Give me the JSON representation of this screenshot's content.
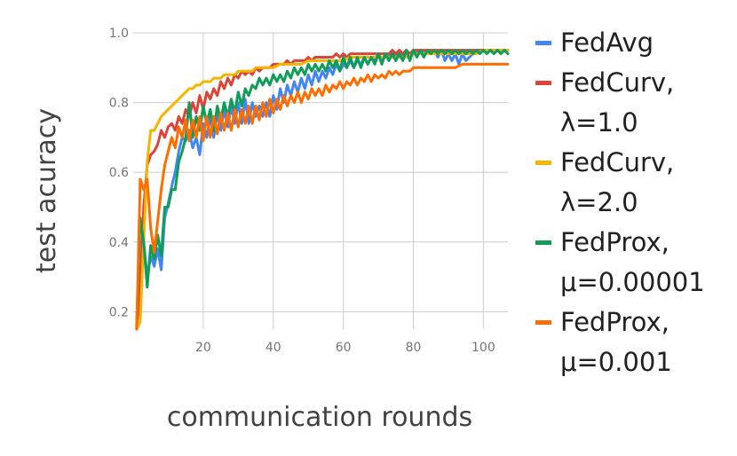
{
  "chart_data": {
    "type": "line",
    "title": "",
    "xlabel": "communication rounds",
    "ylabel": "test acuracy",
    "xlim": [
      0,
      107
    ],
    "ylim": [
      0.15,
      1.0
    ],
    "xticks": [
      20,
      40,
      60,
      80,
      100
    ],
    "yticks": [
      0.2,
      0.4,
      0.6,
      0.8,
      1.0
    ],
    "grid": true,
    "legend_position": "right",
    "series": [
      {
        "name_lines": [
          "FedAvg"
        ],
        "color": "#4285F4",
        "x": [
          1,
          2,
          3,
          4,
          5,
          6,
          7,
          8,
          9,
          10,
          11,
          12,
          13,
          14,
          15,
          16,
          17,
          18,
          19,
          20,
          21,
          22,
          23,
          24,
          25,
          26,
          27,
          28,
          29,
          30,
          31,
          32,
          33,
          34,
          35,
          36,
          37,
          38,
          39,
          40,
          41,
          42,
          43,
          44,
          45,
          46,
          47,
          48,
          49,
          50,
          51,
          52,
          53,
          54,
          55,
          56,
          57,
          58,
          59,
          60,
          61,
          62,
          63,
          64,
          65,
          66,
          67,
          68,
          69,
          70,
          71,
          72,
          73,
          74,
          75,
          76,
          77,
          78,
          79,
          80,
          81,
          82,
          83,
          84,
          85,
          86,
          87,
          88,
          89,
          90,
          91,
          92,
          93,
          94,
          95,
          96,
          97,
          98,
          99,
          100,
          101,
          102,
          103,
          104,
          105,
          106,
          107
        ],
        "y": [
          0.16,
          0.25,
          0.4,
          0.3,
          0.36,
          0.33,
          0.38,
          0.32,
          0.47,
          0.51,
          0.56,
          0.6,
          0.66,
          0.7,
          0.69,
          0.72,
          0.67,
          0.7,
          0.65,
          0.74,
          0.7,
          0.76,
          0.7,
          0.77,
          0.72,
          0.78,
          0.73,
          0.79,
          0.74,
          0.8,
          0.74,
          0.81,
          0.74,
          0.8,
          0.76,
          0.79,
          0.76,
          0.8,
          0.76,
          0.82,
          0.78,
          0.84,
          0.8,
          0.85,
          0.82,
          0.86,
          0.83,
          0.87,
          0.84,
          0.88,
          0.85,
          0.89,
          0.86,
          0.89,
          0.87,
          0.9,
          0.88,
          0.91,
          0.89,
          0.91,
          0.9,
          0.92,
          0.9,
          0.92,
          0.91,
          0.93,
          0.91,
          0.93,
          0.92,
          0.94,
          0.92,
          0.94,
          0.93,
          0.94,
          0.93,
          0.94,
          0.93,
          0.95,
          0.93,
          0.95,
          0.94,
          0.95,
          0.94,
          0.95,
          0.94,
          0.95,
          0.93,
          0.95,
          0.92,
          0.94,
          0.92,
          0.94,
          0.91,
          0.94,
          0.92,
          0.93,
          0.94,
          0.95,
          0.95,
          0.95,
          0.95,
          0.95,
          0.95,
          0.95,
          0.95,
          0.95,
          0.95
        ]
      },
      {
        "name_lines": [
          "FedCurv,",
          "λ=1.0"
        ],
        "color": "#DB4437",
        "x": [
          1,
          2,
          3,
          4,
          5,
          6,
          7,
          8,
          9,
          10,
          11,
          12,
          13,
          14,
          15,
          16,
          17,
          18,
          19,
          20,
          21,
          22,
          23,
          24,
          25,
          26,
          27,
          28,
          29,
          30,
          31,
          32,
          33,
          34,
          35,
          36,
          37,
          38,
          39,
          40,
          41,
          42,
          43,
          44,
          45,
          46,
          47,
          48,
          49,
          50,
          51,
          52,
          53,
          54,
          55,
          56,
          57,
          58,
          59,
          60,
          61,
          62,
          63,
          64,
          65,
          66,
          67,
          68,
          69,
          70,
          71,
          72,
          73,
          74,
          75,
          76,
          77,
          78,
          79,
          80,
          81,
          82,
          83,
          84,
          85,
          86,
          87,
          88,
          89,
          90,
          91,
          92,
          93,
          94,
          95,
          96,
          97,
          98,
          99,
          100,
          101,
          102,
          103,
          104,
          105,
          106,
          107
        ],
        "y": [
          0.16,
          0.26,
          0.5,
          0.62,
          0.65,
          0.66,
          0.68,
          0.72,
          0.7,
          0.73,
          0.74,
          0.72,
          0.76,
          0.74,
          0.78,
          0.76,
          0.8,
          0.77,
          0.82,
          0.78,
          0.83,
          0.81,
          0.84,
          0.82,
          0.86,
          0.84,
          0.87,
          0.85,
          0.88,
          0.87,
          0.89,
          0.88,
          0.89,
          0.88,
          0.9,
          0.89,
          0.9,
          0.9,
          0.9,
          0.91,
          0.91,
          0.91,
          0.91,
          0.92,
          0.91,
          0.92,
          0.92,
          0.92,
          0.92,
          0.93,
          0.92,
          0.93,
          0.93,
          0.93,
          0.93,
          0.93,
          0.93,
          0.94,
          0.93,
          0.94,
          0.93,
          0.94,
          0.94,
          0.94,
          0.94,
          0.94,
          0.94,
          0.94,
          0.94,
          0.94,
          0.94,
          0.94,
          0.94,
          0.95,
          0.94,
          0.95,
          0.94,
          0.95,
          0.94,
          0.95,
          0.95,
          0.95,
          0.95,
          0.95,
          0.95,
          0.95,
          0.95,
          0.95,
          0.95,
          0.95,
          0.95,
          0.95,
          0.95,
          0.95,
          0.95,
          0.95,
          0.95,
          0.95,
          0.95,
          0.95,
          0.95,
          0.95,
          0.95,
          0.95,
          0.95,
          0.95,
          0.95
        ]
      },
      {
        "name_lines": [
          "FedCurv,",
          "λ=2.0"
        ],
        "color": "#F4B400",
        "x": [
          1,
          2,
          3,
          4,
          5,
          6,
          7,
          8,
          9,
          10,
          11,
          12,
          13,
          14,
          15,
          16,
          17,
          18,
          19,
          20,
          21,
          22,
          23,
          24,
          25,
          26,
          27,
          28,
          29,
          30,
          31,
          32,
          33,
          34,
          35,
          36,
          37,
          38,
          39,
          40,
          42,
          44,
          46,
          48,
          50,
          52,
          54,
          56,
          58,
          60,
          62,
          64,
          66,
          68,
          70,
          72,
          74,
          76,
          78,
          80,
          82,
          84,
          86,
          88,
          90,
          92,
          94,
          96,
          98,
          100,
          102,
          104,
          107
        ],
        "y": [
          0.15,
          0.17,
          0.4,
          0.63,
          0.72,
          0.72,
          0.74,
          0.76,
          0.77,
          0.78,
          0.79,
          0.8,
          0.81,
          0.82,
          0.83,
          0.84,
          0.84,
          0.85,
          0.85,
          0.86,
          0.86,
          0.86,
          0.87,
          0.87,
          0.87,
          0.88,
          0.88,
          0.88,
          0.88,
          0.89,
          0.89,
          0.89,
          0.89,
          0.89,
          0.9,
          0.9,
          0.9,
          0.9,
          0.9,
          0.9,
          0.91,
          0.91,
          0.91,
          0.91,
          0.92,
          0.92,
          0.92,
          0.92,
          0.92,
          0.92,
          0.93,
          0.93,
          0.93,
          0.93,
          0.93,
          0.93,
          0.93,
          0.93,
          0.93,
          0.94,
          0.94,
          0.94,
          0.94,
          0.94,
          0.94,
          0.94,
          0.94,
          0.94,
          0.94,
          0.95,
          0.95,
          0.95,
          0.95
        ]
      },
      {
        "name_lines": [
          "FedProx,",
          "μ=0.00001"
        ],
        "color": "#0F9D58",
        "x": [
          1,
          2,
          3,
          4,
          5,
          6,
          7,
          8,
          9,
          10,
          11,
          12,
          13,
          14,
          15,
          16,
          17,
          18,
          19,
          20,
          21,
          22,
          23,
          24,
          25,
          26,
          27,
          28,
          29,
          30,
          31,
          32,
          33,
          34,
          35,
          36,
          37,
          38,
          39,
          40,
          41,
          42,
          43,
          44,
          45,
          46,
          47,
          48,
          49,
          50,
          51,
          52,
          53,
          54,
          55,
          56,
          57,
          58,
          59,
          60,
          61,
          62,
          63,
          64,
          65,
          66,
          67,
          68,
          69,
          70,
          71,
          72,
          73,
          74,
          75,
          76,
          77,
          78,
          79,
          80,
          81,
          82,
          83,
          84,
          85,
          86,
          87,
          88,
          89,
          90,
          91,
          92,
          93,
          94,
          95,
          96,
          97,
          98,
          99,
          100,
          101,
          102,
          103,
          104,
          105,
          106,
          107
        ],
        "y": [
          0.16,
          0.47,
          0.4,
          0.27,
          0.39,
          0.35,
          0.42,
          0.36,
          0.5,
          0.5,
          0.55,
          0.55,
          0.63,
          0.66,
          0.7,
          0.8,
          0.7,
          0.76,
          0.72,
          0.79,
          0.74,
          0.78,
          0.72,
          0.79,
          0.75,
          0.8,
          0.76,
          0.81,
          0.77,
          0.83,
          0.79,
          0.84,
          0.82,
          0.85,
          0.84,
          0.87,
          0.85,
          0.87,
          0.85,
          0.88,
          0.86,
          0.88,
          0.86,
          0.89,
          0.87,
          0.9,
          0.88,
          0.9,
          0.88,
          0.91,
          0.89,
          0.91,
          0.89,
          0.91,
          0.89,
          0.92,
          0.9,
          0.92,
          0.89,
          0.93,
          0.9,
          0.93,
          0.9,
          0.93,
          0.9,
          0.93,
          0.91,
          0.93,
          0.91,
          0.94,
          0.91,
          0.94,
          0.92,
          0.94,
          0.92,
          0.94,
          0.92,
          0.95,
          0.92,
          0.95,
          0.93,
          0.95,
          0.93,
          0.95,
          0.94,
          0.95,
          0.94,
          0.95,
          0.94,
          0.95,
          0.94,
          0.95,
          0.94,
          0.95,
          0.94,
          0.95,
          0.94,
          0.95,
          0.94,
          0.95,
          0.94,
          0.95,
          0.94,
          0.95,
          0.94,
          0.95,
          0.94
        ]
      },
      {
        "name_lines": [
          "FedProx,",
          "μ=0.001"
        ],
        "color": "#FF6D00",
        "x": [
          1,
          2,
          3,
          4,
          5,
          6,
          7,
          8,
          9,
          10,
          11,
          12,
          13,
          14,
          15,
          16,
          17,
          18,
          19,
          20,
          21,
          22,
          23,
          24,
          25,
          26,
          27,
          28,
          29,
          30,
          31,
          32,
          33,
          34,
          35,
          36,
          37,
          38,
          39,
          40,
          41,
          42,
          43,
          44,
          45,
          46,
          47,
          48,
          49,
          50,
          51,
          52,
          53,
          54,
          55,
          56,
          57,
          58,
          59,
          60,
          61,
          62,
          63,
          64,
          65,
          66,
          67,
          68,
          69,
          70,
          71,
          72,
          73,
          74,
          75,
          76,
          77,
          78,
          79,
          80,
          82,
          84,
          86,
          88,
          90,
          92,
          94,
          96,
          98,
          100,
          102,
          104,
          107
        ],
        "y": [
          0.15,
          0.58,
          0.55,
          0.58,
          0.44,
          0.37,
          0.46,
          0.55,
          0.62,
          0.66,
          0.7,
          0.67,
          0.73,
          0.7,
          0.75,
          0.69,
          0.75,
          0.7,
          0.76,
          0.69,
          0.76,
          0.7,
          0.76,
          0.71,
          0.77,
          0.72,
          0.77,
          0.72,
          0.78,
          0.73,
          0.78,
          0.74,
          0.79,
          0.74,
          0.79,
          0.75,
          0.8,
          0.76,
          0.81,
          0.77,
          0.81,
          0.78,
          0.82,
          0.79,
          0.82,
          0.8,
          0.83,
          0.8,
          0.83,
          0.81,
          0.84,
          0.82,
          0.84,
          0.82,
          0.85,
          0.83,
          0.85,
          0.84,
          0.86,
          0.84,
          0.86,
          0.85,
          0.87,
          0.85,
          0.87,
          0.86,
          0.88,
          0.86,
          0.88,
          0.87,
          0.88,
          0.87,
          0.89,
          0.88,
          0.89,
          0.88,
          0.89,
          0.89,
          0.89,
          0.9,
          0.9,
          0.9,
          0.9,
          0.9,
          0.9,
          0.9,
          0.91,
          0.91,
          0.91,
          0.91,
          0.91,
          0.91,
          0.91
        ]
      }
    ]
  }
}
